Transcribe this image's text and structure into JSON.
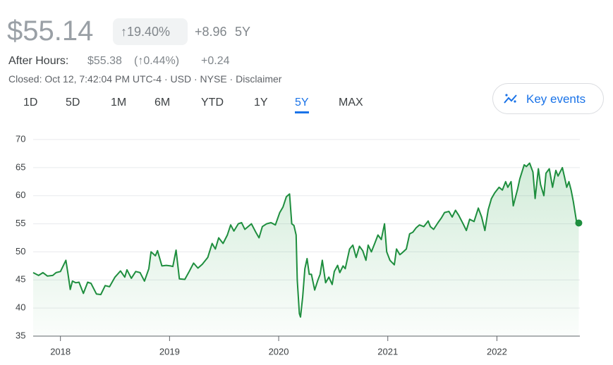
{
  "header": {
    "price": "$55.14",
    "change_pct": "↑19.40%",
    "change": "+8.96",
    "period": "5Y",
    "after_hours_label": "After Hours:",
    "after_hours_price": "$55.38",
    "after_hours_change_pct": "(↑0.44%)",
    "after_hours_change": "+0.24",
    "status": "Closed: Oct 12, 7:42:04 PM UTC-4 · USD · NYSE · Disclaimer",
    "tabs": [
      "1D",
      "5D",
      "1M",
      "6M",
      "YTD",
      "1Y",
      "5Y",
      "MAX"
    ],
    "selected_tab_index": 6,
    "key_events": "Key events"
  },
  "chart_data": {
    "type": "line",
    "x": [
      2017.75,
      2017.8,
      2017.84,
      2017.88,
      2017.93,
      2017.96,
      2018.0,
      2018.05,
      2018.07,
      2018.09,
      2018.11,
      2018.14,
      2018.17,
      2018.21,
      2018.25,
      2018.28,
      2018.33,
      2018.37,
      2018.41,
      2018.45,
      2018.5,
      2018.55,
      2018.59,
      2018.61,
      2018.65,
      2018.69,
      2018.73,
      2018.77,
      2018.81,
      2018.83,
      2018.87,
      2018.89,
      2018.93,
      2018.97,
      2019.01,
      2019.03,
      2019.06,
      2019.09,
      2019.14,
      2019.18,
      2019.22,
      2019.26,
      2019.3,
      2019.35,
      2019.39,
      2019.42,
      2019.45,
      2019.49,
      2019.53,
      2019.56,
      2019.59,
      2019.63,
      2019.66,
      2019.69,
      2019.72,
      2019.75,
      2019.79,
      2019.82,
      2019.85,
      2019.89,
      2019.93,
      2019.97,
      2020.01,
      2020.04,
      2020.07,
      2020.1,
      2020.12,
      2020.14,
      2020.16,
      2020.17,
      2020.19,
      2020.2,
      2020.22,
      2020.24,
      2020.26,
      2020.28,
      2020.3,
      2020.33,
      2020.36,
      2020.38,
      2020.4,
      2020.43,
      2020.46,
      2020.49,
      2020.51,
      2020.54,
      2020.56,
      2020.59,
      2020.61,
      2020.65,
      2020.68,
      2020.71,
      2020.74,
      2020.77,
      2020.8,
      2020.82,
      2020.85,
      2020.88,
      2020.91,
      2020.94,
      2020.97,
      2020.99,
      2021.02,
      2021.06,
      2021.08,
      2021.11,
      2021.13,
      2021.17,
      2021.2,
      2021.23,
      2021.26,
      2021.29,
      2021.33,
      2021.37,
      2021.39,
      2021.42,
      2021.46,
      2021.49,
      2021.52,
      2021.56,
      2021.59,
      2021.62,
      2021.65,
      2021.69,
      2021.72,
      2021.75,
      2021.79,
      2021.83,
      2021.86,
      2021.89,
      2021.92,
      2021.95,
      2021.98,
      2022.02,
      2022.05,
      2022.08,
      2022.1,
      2022.13,
      2022.15,
      2022.19,
      2022.21,
      2022.25,
      2022.27,
      2022.3,
      2022.33,
      2022.35,
      2022.38,
      2022.4,
      2022.43,
      2022.45,
      2022.48,
      2022.51,
      2022.54,
      2022.56,
      2022.6,
      2022.62,
      2022.64,
      2022.66,
      2022.68,
      2022.7,
      2022.73,
      2022.75
    ],
    "series": [
      {
        "color": "#1e8e3e",
        "values": [
          46.3,
          45.8,
          46.3,
          45.7,
          45.8,
          46.3,
          46.5,
          48.5,
          46,
          43.3,
          44.8,
          44.5,
          44.6,
          42.6,
          44.6,
          44.4,
          42.5,
          42.4,
          44,
          43.8,
          45.5,
          46.6,
          45.5,
          46.8,
          45.3,
          46.5,
          46.3,
          44.8,
          47,
          50,
          49.3,
          50.2,
          47.5,
          47.6,
          47.5,
          47.4,
          50.3,
          45.2,
          45.1,
          46.5,
          48,
          47.1,
          47.8,
          49,
          51.5,
          50.5,
          52.5,
          51.5,
          53,
          54.8,
          53.7,
          55,
          55.2,
          54,
          54.5,
          55,
          53.5,
          52.5,
          54.5,
          55,
          55.2,
          54.8,
          57,
          58,
          59.8,
          60.3,
          55,
          54.7,
          53,
          45,
          39,
          38.4,
          42,
          47,
          48.8,
          46,
          46,
          43.2,
          45,
          46,
          48.5,
          44.5,
          45.5,
          44.2,
          46.5,
          47.6,
          46.3,
          47.5,
          47,
          50.5,
          51.2,
          49,
          51,
          50.2,
          48.5,
          51.2,
          50,
          51.5,
          53,
          52.2,
          55,
          50,
          48.5,
          47.7,
          50.5,
          49.5,
          49.8,
          50.5,
          53.2,
          53.5,
          54.3,
          54.8,
          54.5,
          55.5,
          54.5,
          54,
          55.2,
          56,
          57,
          57.2,
          56.2,
          57.4,
          56.5,
          55,
          53.8,
          55.8,
          55.4,
          57.8,
          56.2,
          53.8,
          57.5,
          59.5,
          60.5,
          61.5,
          61,
          62.5,
          61.5,
          62.5,
          58.2,
          61.2,
          63,
          65.5,
          65.2,
          65.8,
          64.2,
          59.5,
          64.8,
          62,
          60,
          64,
          64.8,
          61.5,
          64.5,
          63.5,
          65,
          63.3,
          61.5,
          62.5,
          61,
          59,
          55.3,
          55.14
        ]
      }
    ],
    "xlim": [
      2017.75,
      2022.76
    ],
    "xticks": [
      2018,
      2019,
      2020,
      2021,
      2022
    ],
    "ylim": [
      35,
      70
    ],
    "yticks": [
      35,
      40,
      45,
      50,
      55,
      60,
      65,
      70
    ],
    "grid": true
  }
}
